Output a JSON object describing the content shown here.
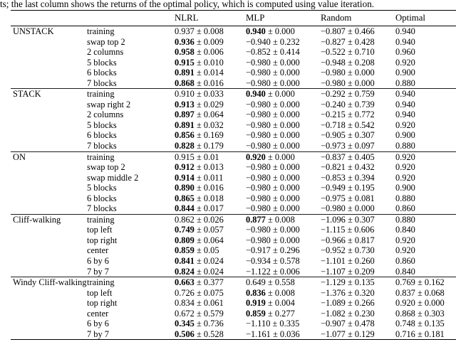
{
  "caption": "ts; the last column shows the returns of the optimal policy, which is computed using value iteration.",
  "table": {
    "columns": [
      "NLRL",
      "MLP",
      "Random",
      "Optimal"
    ],
    "sections": [
      {
        "name": "UNSTACK",
        "rows": [
          {
            "condition": "training",
            "nlrl": {
              "m": "0.937",
              "s": "0.008",
              "b": false
            },
            "mlp": {
              "m": "0.940",
              "s": "0.000",
              "b": true
            },
            "random": {
              "m": "−0.807",
              "s": "0.466"
            },
            "optimal": "0.940"
          },
          {
            "condition": "swap top 2",
            "nlrl": {
              "m": "0.936",
              "s": "0.009",
              "b": true
            },
            "mlp": {
              "m": "−0.940",
              "s": "0.232",
              "b": false
            },
            "random": {
              "m": "−0.827",
              "s": "0.428"
            },
            "optimal": "0.940"
          },
          {
            "condition": "2 columns",
            "nlrl": {
              "m": "0.958",
              "s": "0.006",
              "b": true
            },
            "mlp": {
              "m": "−0.852",
              "s": "0.414",
              "b": false
            },
            "random": {
              "m": "−0.522",
              "s": "0.710"
            },
            "optimal": "0.960"
          },
          {
            "condition": "5 blocks",
            "nlrl": {
              "m": "0.915",
              "s": "0.010",
              "b": true
            },
            "mlp": {
              "m": "−0.980",
              "s": "0.000",
              "b": false
            },
            "random": {
              "m": "−0.948",
              "s": "0.208"
            },
            "optimal": "0.920"
          },
          {
            "condition": "6 blocks",
            "nlrl": {
              "m": "0.891",
              "s": "0.014",
              "b": true
            },
            "mlp": {
              "m": "−0.980",
              "s": "0.000",
              "b": false
            },
            "random": {
              "m": "−0.980",
              "s": "0.000"
            },
            "optimal": "0.900"
          },
          {
            "condition": "7 blocks",
            "nlrl": {
              "m": "0.868",
              "s": "0.016",
              "b": true
            },
            "mlp": {
              "m": "−0.980",
              "s": "0.000",
              "b": false
            },
            "random": {
              "m": "−0.980",
              "s": "0.000"
            },
            "optimal": "0.880"
          }
        ]
      },
      {
        "name": "STACK",
        "rows": [
          {
            "condition": "training",
            "nlrl": {
              "m": "0.910",
              "s": "0.033",
              "b": false
            },
            "mlp": {
              "m": "0.940",
              "s": "0.000",
              "b": true
            },
            "random": {
              "m": "−0.292",
              "s": "0.759"
            },
            "optimal": "0.940"
          },
          {
            "condition": "swap right 2",
            "nlrl": {
              "m": "0.913",
              "s": "0.029",
              "b": true
            },
            "mlp": {
              "m": "−0.980",
              "s": "0.000",
              "b": false
            },
            "random": {
              "m": "−0.240",
              "s": "0.739"
            },
            "optimal": "0.940"
          },
          {
            "condition": "2 columns",
            "nlrl": {
              "m": "0.897",
              "s": "0.064",
              "b": true
            },
            "mlp": {
              "m": "−0.980",
              "s": "0.000",
              "b": false
            },
            "random": {
              "m": "−0.215",
              "s": "0.772"
            },
            "optimal": "0.940"
          },
          {
            "condition": "5 blocks",
            "nlrl": {
              "m": "0.891",
              "s": "0.032",
              "b": true
            },
            "mlp": {
              "m": "−0.980",
              "s": "0.000",
              "b": false
            },
            "random": {
              "m": "−0.718",
              "s": "0.542"
            },
            "optimal": "0.920"
          },
          {
            "condition": "6 blocks",
            "nlrl": {
              "m": "0.856",
              "s": "0.169",
              "b": true
            },
            "mlp": {
              "m": "−0.980",
              "s": "0.000",
              "b": false
            },
            "random": {
              "m": "−0.905",
              "s": "0.307"
            },
            "optimal": "0.900"
          },
          {
            "condition": "7 blocks",
            "nlrl": {
              "m": "0.828",
              "s": "0.179",
              "b": true
            },
            "mlp": {
              "m": "−0.980",
              "s": "0.000",
              "b": false
            },
            "random": {
              "m": "−0.973",
              "s": "0.097"
            },
            "optimal": "0.880"
          }
        ]
      },
      {
        "name": "ON",
        "rows": [
          {
            "condition": "training",
            "nlrl": {
              "m": "0.915",
              "s": "0.01",
              "b": false
            },
            "mlp": {
              "m": "0.920",
              "s": "0.000",
              "b": true
            },
            "random": {
              "m": "−0.837",
              "s": "0.405"
            },
            "optimal": "0.920"
          },
          {
            "condition": "swap top 2",
            "nlrl": {
              "m": "0.912",
              "s": "0.013",
              "b": true
            },
            "mlp": {
              "m": "−0.980",
              "s": "0.000",
              "b": false
            },
            "random": {
              "m": "−0.821",
              "s": "0.432"
            },
            "optimal": "0.920"
          },
          {
            "condition": "swap middle 2",
            "nlrl": {
              "m": "0.914",
              "s": "0.011",
              "b": true
            },
            "mlp": {
              "m": "−0.980",
              "s": "0.000",
              "b": false
            },
            "random": {
              "m": "−0.853",
              "s": "0.394"
            },
            "optimal": "0.920"
          },
          {
            "condition": "5 blocks",
            "nlrl": {
              "m": "0.890",
              "s": "0.016",
              "b": true
            },
            "mlp": {
              "m": "−0.980",
              "s": "0.000",
              "b": false
            },
            "random": {
              "m": "−0.949",
              "s": "0.195"
            },
            "optimal": "0.900"
          },
          {
            "condition": "6 blocks",
            "nlrl": {
              "m": "0.865",
              "s": "0.018",
              "b": true
            },
            "mlp": {
              "m": "−0.980",
              "s": "0.000",
              "b": false
            },
            "random": {
              "m": "−0.975",
              "s": "0.081"
            },
            "optimal": "0.880"
          },
          {
            "condition": "7 blocks",
            "nlrl": {
              "m": "0.844",
              "s": "0.017",
              "b": true
            },
            "mlp": {
              "m": "−0.980",
              "s": "0.000",
              "b": false
            },
            "random": {
              "m": "−0.980",
              "s": "0.000"
            },
            "optimal": "0.860"
          }
        ]
      },
      {
        "name": "Cliff-walking",
        "rows": [
          {
            "condition": "training",
            "nlrl": {
              "m": "0.862",
              "s": "0.026",
              "b": false
            },
            "mlp": {
              "m": "0.877",
              "s": "0.008",
              "b": true
            },
            "random": {
              "m": "−1.096",
              "s": "0.307"
            },
            "optimal": "0.880"
          },
          {
            "condition": "top left",
            "nlrl": {
              "m": "0.749",
              "s": "0.057",
              "b": true
            },
            "mlp": {
              "m": "−0.980",
              "s": "0.000",
              "b": false
            },
            "random": {
              "m": "−1.115",
              "s": "0.606"
            },
            "optimal": "0.840"
          },
          {
            "condition": "top right",
            "nlrl": {
              "m": "0.809",
              "s": "0.064",
              "b": true
            },
            "mlp": {
              "m": "−0.980",
              "s": "0.000",
              "b": false
            },
            "random": {
              "m": "−0.966",
              "s": "0.817"
            },
            "optimal": "0.920"
          },
          {
            "condition": "center",
            "nlrl": {
              "m": "0.859",
              "s": "0.05",
              "b": true
            },
            "mlp": {
              "m": "−0.917",
              "s": "0.296",
              "b": false
            },
            "random": {
              "m": "−0.952",
              "s": "0.730"
            },
            "optimal": "0.920"
          },
          {
            "condition": "6 by 6",
            "nlrl": {
              "m": "0.841",
              "s": "0.024",
              "b": true
            },
            "mlp": {
              "m": "−0.934",
              "s": "0.578",
              "b": false
            },
            "random": {
              "m": "−1.101",
              "s": "0.260"
            },
            "optimal": "0.860"
          },
          {
            "condition": "7 by 7",
            "nlrl": {
              "m": "0.824",
              "s": "0.024",
              "b": true
            },
            "mlp": {
              "m": "−1.122",
              "s": "0.006",
              "b": false
            },
            "random": {
              "m": "−1.107",
              "s": "0.209"
            },
            "optimal": "0.840"
          }
        ]
      },
      {
        "name": "Windy Cliff-walking",
        "rows": [
          {
            "condition": "training",
            "nlrl": {
              "m": "0.663",
              "s": "0.377",
              "b": true
            },
            "mlp": {
              "m": "0.649",
              "s": "0.558",
              "b": false
            },
            "random": {
              "m": "−1.129",
              "s": "0.135"
            },
            "optimal": "0.769 ± 0.162"
          },
          {
            "condition": "top left",
            "nlrl": {
              "m": "0.726",
              "s": "0.075",
              "b": false
            },
            "mlp": {
              "m": "0.836",
              "s": "0.008",
              "b": true
            },
            "random": {
              "m": "−1.376",
              "s": "0.320"
            },
            "optimal": "0.837 ± 0.068"
          },
          {
            "condition": "top right",
            "nlrl": {
              "m": "0.834",
              "s": "0.061",
              "b": false
            },
            "mlp": {
              "m": "0.919",
              "s": "0.004",
              "b": true
            },
            "random": {
              "m": "−1.089",
              "s": "0.266"
            },
            "optimal": "0.920 ± 0.000"
          },
          {
            "condition": "center",
            "nlrl": {
              "m": "0.672",
              "s": "0.579",
              "b": false
            },
            "mlp": {
              "m": "0.859",
              "s": "0.277",
              "b": true
            },
            "random": {
              "m": "−1.082",
              "s": "0.230"
            },
            "optimal": "0.868 ± 0.303"
          },
          {
            "condition": "6 by 6",
            "nlrl": {
              "m": "0.345",
              "s": "0.736",
              "b": true
            },
            "mlp": {
              "m": "−1.110",
              "s": "0.335",
              "b": false
            },
            "random": {
              "m": "−0.907",
              "s": "0.478"
            },
            "optimal": "0.748 ± 0.135"
          },
          {
            "condition": "7 by 7",
            "nlrl": {
              "m": "0.506",
              "s": "0.528",
              "b": true
            },
            "mlp": {
              "m": "−1.161",
              "s": "0.036",
              "b": false
            },
            "random": {
              "m": "−1.077",
              "s": "0.129"
            },
            "optimal": "0.716 ± 0.181"
          }
        ]
      }
    ]
  }
}
